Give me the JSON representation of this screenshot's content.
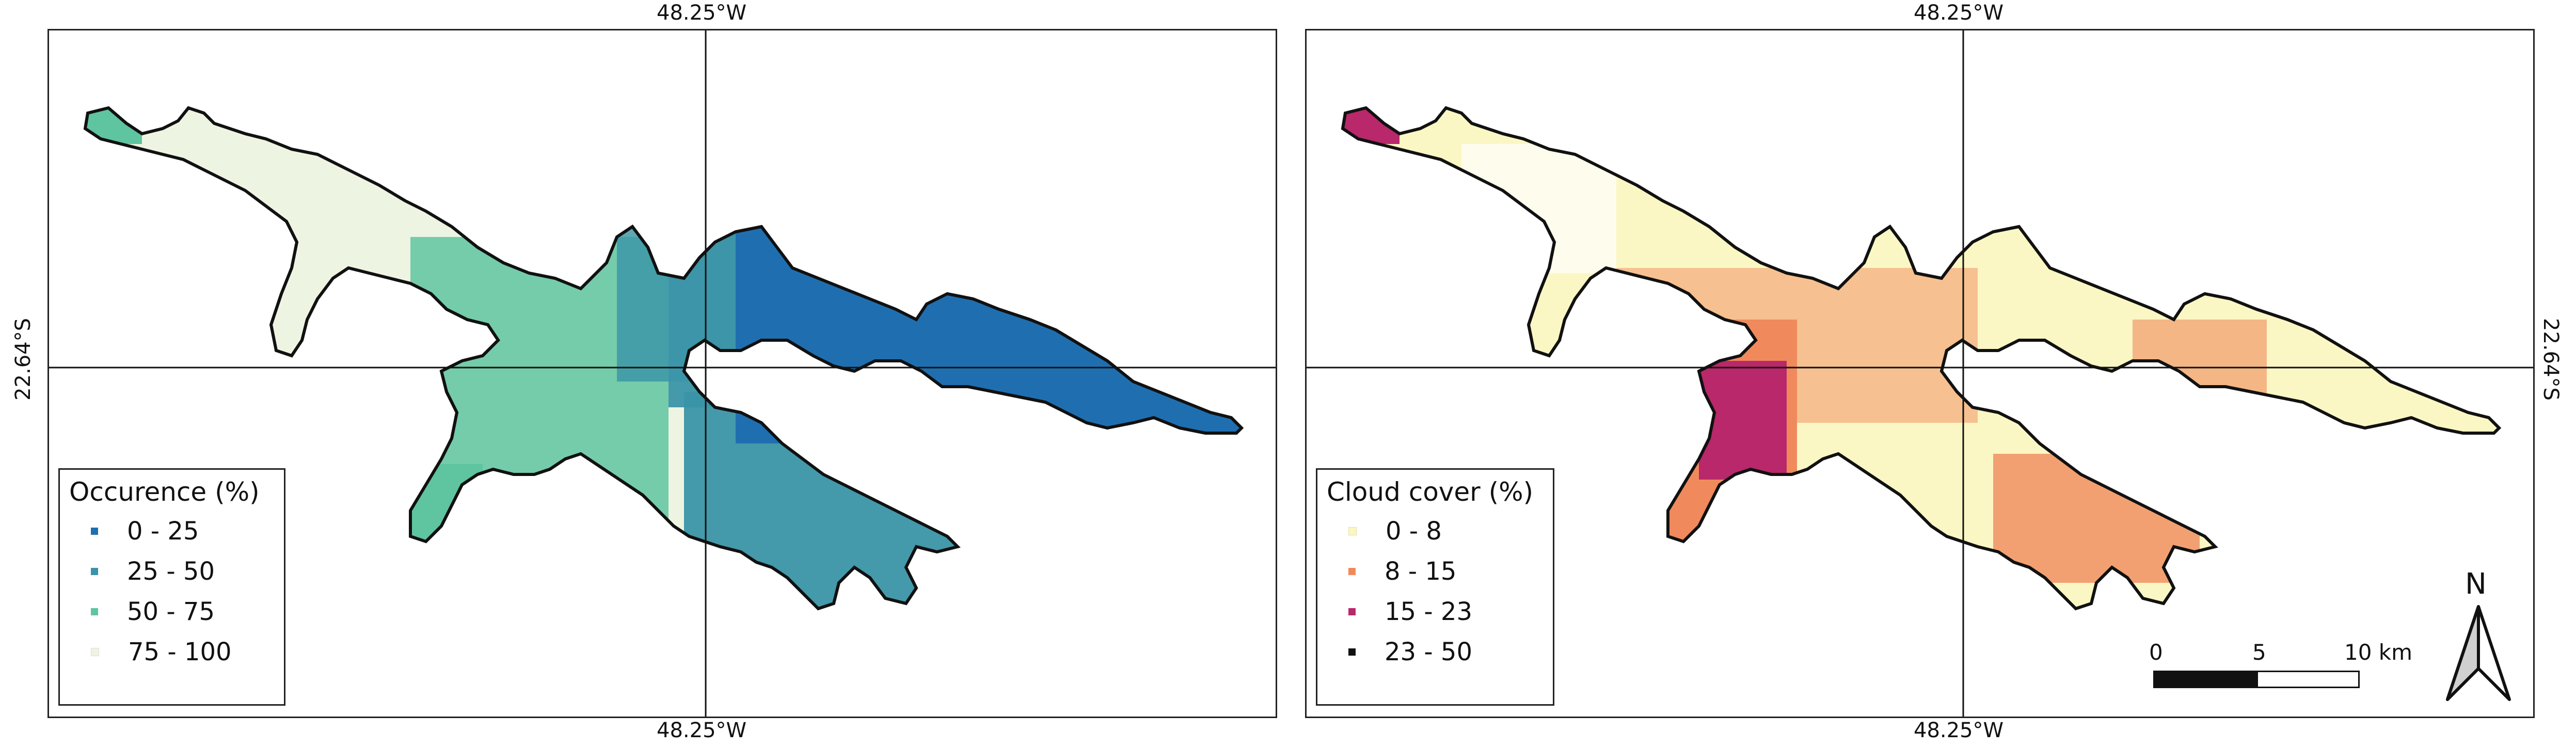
{
  "coords": {
    "top_left": "48.25°W",
    "top_right": "48.25°W",
    "bottom_left": "48.25°W",
    "bottom_right": "48.25°W",
    "left_lat": "22.64°S",
    "right_lat": "22.64°S"
  },
  "left_map": {
    "legend_title": "Occurence (%)",
    "classes": [
      {
        "label": "0 - 25",
        "color": "#1f6fb0"
      },
      {
        "label": "25 - 50",
        "color": "#3a93a8"
      },
      {
        "label": "50 - 75",
        "color": "#5fc4a0"
      },
      {
        "label": "75 - 100",
        "color": "#f0f5e4"
      }
    ]
  },
  "right_map": {
    "legend_title": "Cloud cover (%)",
    "classes": [
      {
        "label": "0 - 8",
        "color": "#fbf7c4"
      },
      {
        "label": "8 - 15",
        "color": "#f08a5c"
      },
      {
        "label": "15 - 23",
        "color": "#b8286a"
      },
      {
        "label": "23 - 50",
        "color": "#111111"
      }
    ]
  },
  "scale": {
    "tick_0": "0",
    "tick_5": "5",
    "tick_10": "10 km"
  },
  "north_label": "N"
}
